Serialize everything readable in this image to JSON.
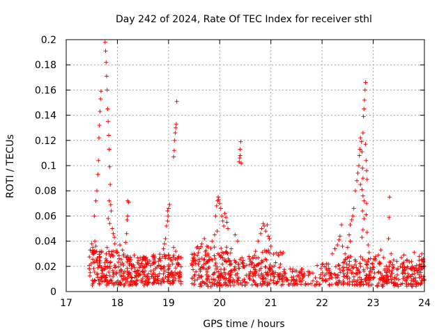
{
  "chart_data": {
    "type": "scatter",
    "title": "Day 242 of 2024, Rate Of TEC Index for receiver sthl",
    "xlabel": "GPS time / hours",
    "ylabel": "ROTI / TECUs",
    "xlim": [
      17,
      24
    ],
    "ylim": [
      0,
      0.2
    ],
    "xticks": [
      17,
      18,
      19,
      20,
      21,
      22,
      23,
      24
    ],
    "yticks": [
      0,
      0.02,
      0.04,
      0.06,
      0.08,
      0.1,
      0.12,
      0.14,
      0.16,
      0.18,
      0.2
    ],
    "ytick_labels": [
      "0",
      "0.02",
      "0.04",
      "0.06",
      "0.08",
      "0.1",
      "0.12",
      "0.14",
      "0.16",
      "0.18",
      "0.2"
    ],
    "grid": true,
    "legend": "none",
    "marker": "plus",
    "color": "#ff0000",
    "series": [
      {
        "name": "ROTI",
        "points": [
          [
            17.55,
            0.06
          ],
          [
            17.58,
            0.072
          ],
          [
            17.6,
            0.08
          ],
          [
            17.62,
            0.093
          ],
          [
            17.63,
            0.104
          ],
          [
            17.64,
            0.122
          ],
          [
            17.65,
            0.132
          ],
          [
            17.66,
            0.143
          ],
          [
            17.67,
            0.153
          ],
          [
            17.68,
            0.159
          ],
          [
            17.76,
            0.198
          ],
          [
            17.77,
            0.191
          ],
          [
            17.78,
            0.182
          ],
          [
            17.79,
            0.171
          ],
          [
            17.8,
            0.16
          ],
          [
            17.81,
            0.145
          ],
          [
            17.82,
            0.135
          ],
          [
            17.83,
            0.124
          ],
          [
            17.84,
            0.113
          ],
          [
            17.85,
            0.099
          ],
          [
            17.86,
            0.085
          ],
          [
            17.84,
            0.072
          ],
          [
            17.87,
            0.069
          ],
          [
            17.88,
            0.064
          ],
          [
            17.82,
            0.058
          ],
          [
            17.85,
            0.054
          ],
          [
            17.9,
            0.05
          ],
          [
            17.92,
            0.046
          ],
          [
            17.94,
            0.043
          ],
          [
            17.5,
            0.038
          ],
          [
            17.52,
            0.035
          ],
          [
            17.54,
            0.032
          ],
          [
            17.56,
            0.04
          ],
          [
            17.58,
            0.036
          ],
          [
            17.8,
            0.035
          ],
          [
            17.95,
            0.038
          ],
          [
            18.05,
            0.037
          ],
          [
            18.1,
            0.033
          ],
          [
            18.16,
            0.039
          ],
          [
            18.18,
            0.046
          ],
          [
            18.19,
            0.057
          ],
          [
            18.2,
            0.06
          ],
          [
            18.2,
            0.072
          ],
          [
            18.22,
            0.071
          ],
          [
            18.9,
            0.034
          ],
          [
            18.92,
            0.038
          ],
          [
            18.94,
            0.042
          ],
          [
            18.96,
            0.052
          ],
          [
            18.98,
            0.056
          ],
          [
            18.99,
            0.06
          ],
          [
            19.0,
            0.066
          ],
          [
            19.02,
            0.069
          ],
          [
            18.98,
            0.064
          ],
          [
            19.1,
            0.107
          ],
          [
            19.11,
            0.112
          ],
          [
            19.12,
            0.12
          ],
          [
            19.13,
            0.126
          ],
          [
            19.14,
            0.13
          ],
          [
            19.15,
            0.133
          ],
          [
            19.16,
            0.151
          ],
          [
            19.1,
            0.035
          ],
          [
            19.14,
            0.032
          ],
          [
            19.2,
            0.028
          ],
          [
            19.5,
            0.03
          ],
          [
            19.6,
            0.034
          ],
          [
            19.65,
            0.038
          ],
          [
            19.7,
            0.042
          ],
          [
            19.75,
            0.036
          ],
          [
            19.85,
            0.04
          ],
          [
            19.9,
            0.045
          ],
          [
            19.95,
            0.048
          ],
          [
            19.94,
            0.068
          ],
          [
            19.96,
            0.072
          ],
          [
            19.97,
            0.075
          ],
          [
            19.98,
            0.073
          ],
          [
            20.0,
            0.07
          ],
          [
            20.02,
            0.066
          ],
          [
            20.04,
            0.06
          ],
          [
            20.06,
            0.056
          ],
          [
            20.08,
            0.052
          ],
          [
            20.1,
            0.062
          ],
          [
            20.12,
            0.059
          ],
          [
            20.14,
            0.055
          ],
          [
            20.16,
            0.05
          ],
          [
            19.92,
            0.06
          ],
          [
            20.3,
            0.045
          ],
          [
            20.35,
            0.04
          ],
          [
            20.38,
            0.103
          ],
          [
            20.39,
            0.106
          ],
          [
            20.4,
            0.108
          ],
          [
            20.4,
            0.113
          ],
          [
            20.41,
            0.119
          ],
          [
            20.42,
            0.102
          ],
          [
            20.8,
            0.046
          ],
          [
            20.82,
            0.05
          ],
          [
            20.85,
            0.054
          ],
          [
            20.87,
            0.052
          ],
          [
            20.9,
            0.048
          ],
          [
            20.93,
            0.053
          ],
          [
            20.95,
            0.044
          ],
          [
            20.97,
            0.042
          ],
          [
            21.0,
            0.036
          ],
          [
            20.75,
            0.04
          ],
          [
            20.7,
            0.032
          ],
          [
            22.2,
            0.03
          ],
          [
            22.25,
            0.034
          ],
          [
            22.3,
            0.037
          ],
          [
            22.33,
            0.041
          ],
          [
            22.35,
            0.044
          ],
          [
            22.38,
            0.053
          ],
          [
            22.4,
            0.036
          ],
          [
            22.45,
            0.03
          ],
          [
            22.5,
            0.035
          ],
          [
            22.53,
            0.045
          ],
          [
            22.55,
            0.053
          ],
          [
            22.58,
            0.057
          ],
          [
            22.6,
            0.06
          ],
          [
            22.62,
            0.066
          ],
          [
            22.55,
            0.04
          ],
          [
            22.65,
            0.08
          ],
          [
            22.68,
            0.088
          ],
          [
            22.7,
            0.094
          ],
          [
            22.72,
            0.1
          ],
          [
            22.73,
            0.108
          ],
          [
            22.74,
            0.113
          ],
          [
            22.75,
            0.122
          ],
          [
            22.77,
            0.119
          ],
          [
            22.78,
            0.111
          ],
          [
            22.79,
            0.098
          ],
          [
            22.8,
            0.09
          ],
          [
            22.75,
            0.085
          ],
          [
            22.78,
            0.081
          ],
          [
            22.8,
            0.076
          ],
          [
            22.82,
            0.072
          ],
          [
            22.79,
            0.064
          ],
          [
            22.82,
            0.058
          ],
          [
            22.8,
            0.049
          ],
          [
            22.78,
            0.043
          ],
          [
            22.8,
            0.126
          ],
          [
            22.81,
            0.139
          ],
          [
            22.82,
            0.145
          ],
          [
            22.83,
            0.152
          ],
          [
            22.84,
            0.16
          ],
          [
            22.85,
            0.166
          ],
          [
            22.85,
            0.117
          ],
          [
            22.86,
            0.104
          ],
          [
            22.87,
            0.096
          ],
          [
            22.88,
            0.089
          ],
          [
            22.87,
            0.07
          ],
          [
            22.86,
            0.061
          ],
          [
            22.88,
            0.047
          ],
          [
            22.9,
            0.037
          ],
          [
            22.92,
            0.031
          ],
          [
            23.05,
            0.025
          ],
          [
            23.1,
            0.029
          ],
          [
            23.15,
            0.033
          ],
          [
            23.2,
            0.027
          ],
          [
            23.3,
            0.042
          ],
          [
            23.31,
            0.059
          ],
          [
            23.32,
            0.075
          ],
          [
            23.35,
            0.03
          ],
          [
            23.4,
            0.025
          ],
          [
            23.55,
            0.027
          ],
          [
            23.6,
            0.029
          ],
          [
            23.8,
            0.031
          ],
          [
            23.9,
            0.028
          ],
          [
            23.95,
            0.03
          ],
          [
            23.98,
            0.026
          ]
        ],
        "dense_clusters": [
          {
            "x": [
              17.45,
              18.05
            ],
            "y": [
              0.005,
              0.033
            ],
            "count": 140
          },
          {
            "x": [
              18.05,
              18.6
            ],
            "y": [
              0.005,
              0.03
            ],
            "count": 140
          },
          {
            "x": [
              18.6,
              19.25
            ],
            "y": [
              0.006,
              0.03
            ],
            "count": 140
          },
          {
            "x": [
              19.45,
              20.25
            ],
            "y": [
              0.004,
              0.036
            ],
            "count": 180
          },
          {
            "x": [
              20.25,
              20.65
            ],
            "y": [
              0.005,
              0.028
            ],
            "count": 60
          },
          {
            "x": [
              20.65,
              21.25
            ],
            "y": [
              0.005,
              0.033
            ],
            "count": 120
          },
          {
            "x": [
              21.25,
              21.85
            ],
            "y": [
              0.005,
              0.018
            ],
            "count": 60
          },
          {
            "x": [
              21.85,
              22.4
            ],
            "y": [
              0.005,
              0.022
            ],
            "count": 60
          },
          {
            "x": [
              22.4,
              23.05
            ],
            "y": [
              0.005,
              0.028
            ],
            "count": 120
          },
          {
            "x": [
              23.05,
              23.6
            ],
            "y": [
              0.004,
              0.024
            ],
            "count": 90
          },
          {
            "x": [
              23.6,
              24.0
            ],
            "y": [
              0.004,
              0.026
            ],
            "count": 90
          }
        ]
      }
    ]
  }
}
